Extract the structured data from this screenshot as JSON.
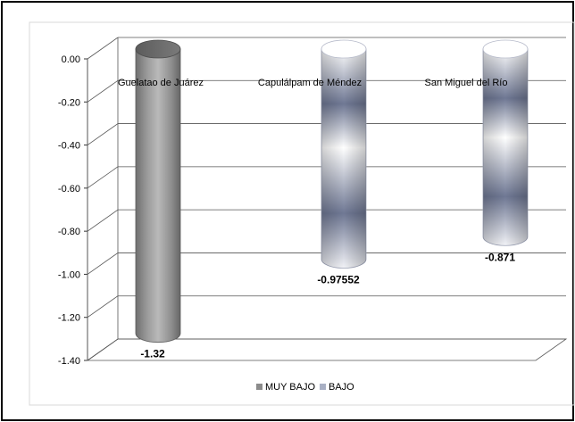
{
  "chart_data": {
    "type": "bar",
    "title": "",
    "xlabel": "",
    "ylabel": "",
    "ylim": [
      -1.4,
      0.0
    ],
    "ytick_labels": [
      "0.00",
      "-0.20",
      "-0.40",
      "-0.60",
      "-0.80",
      "-1.00",
      "-1.20",
      "-1.40"
    ],
    "ytick_values": [
      0,
      -0.2,
      -0.4,
      -0.6,
      -0.8,
      -1.0,
      -1.2,
      -1.4
    ],
    "categories": [
      "Guelatao de Juárez",
      "Capulálpam de Méndez",
      "San Miguel del Río"
    ],
    "values": [
      -1.32,
      -0.97552,
      -0.871
    ],
    "data_labels": [
      "-1.32",
      "-0.97552",
      "-0.871"
    ],
    "bar_series": [
      "MUY BAJO",
      "BAJO",
      "BAJO"
    ],
    "series": [
      {
        "name": "MUY BAJO",
        "color": "#8c8c8c"
      },
      {
        "name": "BAJO",
        "color": "#a9b0c4"
      }
    ],
    "grid": true,
    "legend_position": "bottom",
    "bar_shape": "cylinder-3d"
  }
}
